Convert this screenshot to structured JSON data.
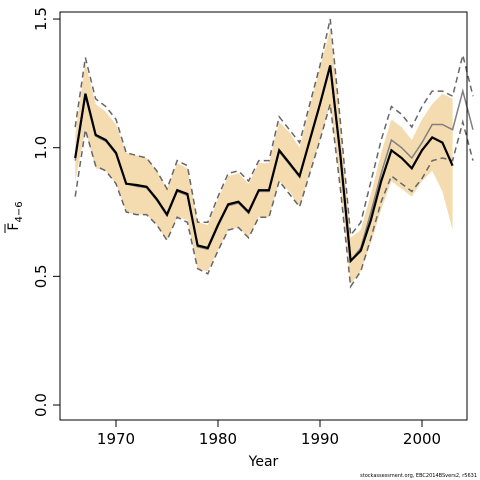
{
  "chart_data": {
    "type": "line",
    "xlabel": "Year",
    "ylabel_main": "F",
    "ylabel_sub": "4−6",
    "xlim": [
      1965,
      2005
    ],
    "ylim": [
      0,
      1.5
    ],
    "xticks": [
      1970,
      1980,
      1990,
      2000
    ],
    "yticks": [
      0.0,
      0.5,
      1.0,
      1.5
    ],
    "ytick_labels": [
      "0.0",
      "0.5",
      "1.0",
      "1.5"
    ],
    "grid": false,
    "legend": "none",
    "colors": {
      "band_fill": "#f5dcb0",
      "current": "#000000",
      "previous": "#808080",
      "dashed": "#666666",
      "axis": "#000000"
    },
    "current_assessment": {
      "x": [
        1966,
        1967,
        1968,
        1969,
        1970,
        1971,
        1972,
        1973,
        1974,
        1975,
        1976,
        1977,
        1978,
        1979,
        1980,
        1981,
        1982,
        1983,
        1984,
        1985,
        1986,
        1987,
        1988,
        1989,
        1990,
        1991,
        1992,
        1993,
        1994,
        1995,
        1996,
        1997,
        1998,
        1999,
        2000,
        2001,
        2002,
        2003
      ],
      "y": [
        0.96,
        1.21,
        1.05,
        1.03,
        0.98,
        0.86,
        0.855,
        0.848,
        0.8,
        0.74,
        0.835,
        0.82,
        0.62,
        0.61,
        0.7,
        0.78,
        0.79,
        0.75,
        0.835,
        0.835,
        0.99,
        0.94,
        0.89,
        1.03,
        1.17,
        1.32,
        0.97,
        0.56,
        0.6,
        0.72,
        0.87,
        0.99,
        0.96,
        0.92,
        0.99,
        1.04,
        1.02,
        0.93
      ],
      "lower": [
        0.87,
        1.07,
        0.92,
        0.91,
        0.86,
        0.75,
        0.74,
        0.74,
        0.7,
        0.64,
        0.73,
        0.72,
        0.53,
        0.52,
        0.6,
        0.68,
        0.69,
        0.65,
        0.73,
        0.73,
        0.87,
        0.83,
        0.77,
        0.9,
        1.03,
        1.17,
        0.85,
        0.47,
        0.52,
        0.63,
        0.76,
        0.87,
        0.84,
        0.81,
        0.87,
        0.91,
        0.83,
        0.68
      ],
      "upper": [
        1.05,
        1.33,
        1.17,
        1.14,
        1.09,
        0.98,
        0.97,
        0.96,
        0.91,
        0.84,
        0.94,
        0.92,
        0.71,
        0.7,
        0.8,
        0.89,
        0.9,
        0.86,
        0.94,
        0.94,
        1.1,
        1.06,
        1.0,
        1.16,
        1.31,
        1.46,
        1.1,
        0.65,
        0.68,
        0.82,
        0.98,
        1.11,
        1.08,
        1.03,
        1.11,
        1.17,
        1.21,
        1.19
      ]
    },
    "previous_assessment": {
      "x": [
        1966,
        1967,
        1968,
        1969,
        1970,
        1971,
        1972,
        1973,
        1974,
        1975,
        1976,
        1977,
        1978,
        1979,
        1980,
        1981,
        1982,
        1983,
        1984,
        1985,
        1986,
        1987,
        1988,
        1989,
        1990,
        1991,
        1992,
        1993,
        1994,
        1995,
        1996,
        1997,
        1998,
        1999,
        2000,
        2001,
        2002,
        2003,
        2004,
        2005
      ],
      "y": [
        0.95,
        1.2,
        1.045,
        1.025,
        0.975,
        0.86,
        0.85,
        0.845,
        0.795,
        0.735,
        0.83,
        0.815,
        0.615,
        0.605,
        0.695,
        0.775,
        0.785,
        0.745,
        0.83,
        0.83,
        0.985,
        0.935,
        0.885,
        1.025,
        1.165,
        1.31,
        0.96,
        0.56,
        0.61,
        0.75,
        0.9,
        1.03,
        1.0,
        0.96,
        1.02,
        1.09,
        1.09,
        1.07,
        1.22,
        1.07
      ],
      "lower": [
        0.81,
        1.07,
        0.93,
        0.91,
        0.86,
        0.75,
        0.74,
        0.74,
        0.7,
        0.64,
        0.73,
        0.71,
        0.53,
        0.51,
        0.6,
        0.68,
        0.69,
        0.65,
        0.73,
        0.73,
        0.87,
        0.82,
        0.77,
        0.9,
        1.03,
        1.17,
        0.84,
        0.46,
        0.52,
        0.65,
        0.79,
        0.89,
        0.86,
        0.83,
        0.88,
        0.95,
        0.96,
        0.95,
        1.1,
        0.95
      ],
      "upper": [
        1.08,
        1.35,
        1.19,
        1.16,
        1.11,
        0.98,
        0.97,
        0.96,
        0.91,
        0.84,
        0.95,
        0.93,
        0.71,
        0.71,
        0.81,
        0.9,
        0.91,
        0.87,
        0.95,
        0.95,
        1.12,
        1.07,
        1.02,
        1.17,
        1.32,
        1.5,
        1.1,
        0.66,
        0.71,
        0.87,
        1.03,
        1.16,
        1.13,
        1.08,
        1.16,
        1.22,
        1.22,
        1.2,
        1.36,
        1.2
      ]
    },
    "footnote": "stockassessment.org, EBC2014BSvers2, r5631"
  }
}
